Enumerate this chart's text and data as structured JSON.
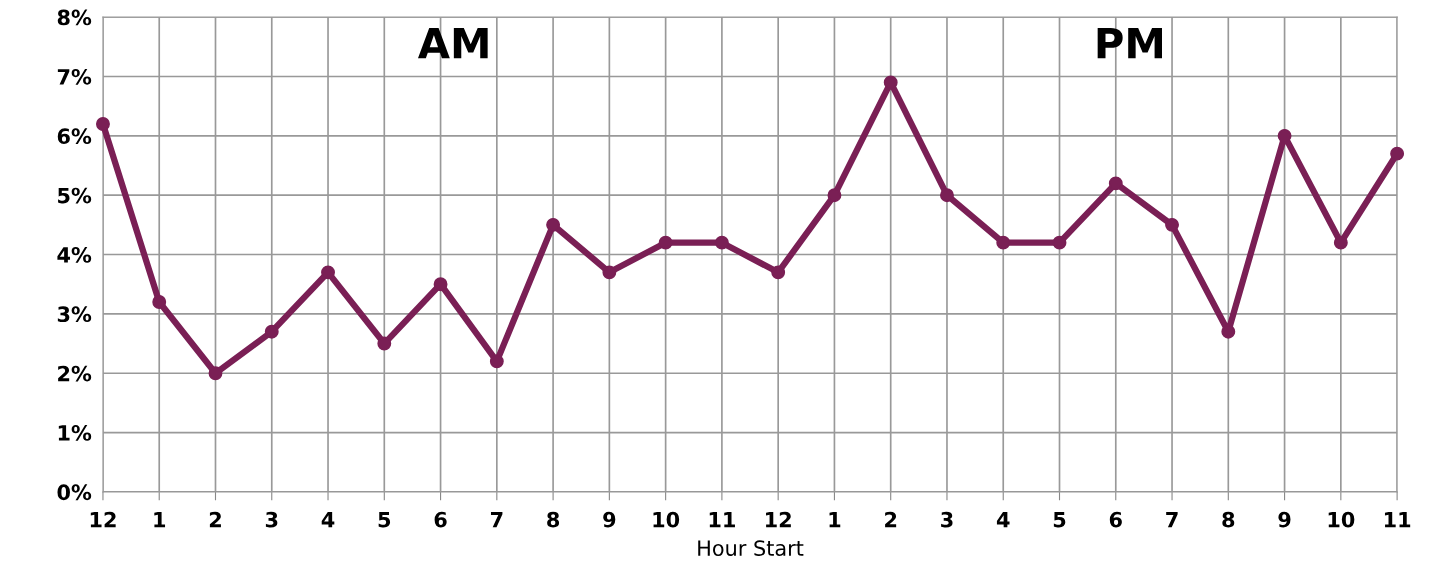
{
  "chart_data": {
    "type": "line",
    "xlabel": "Hour Start",
    "annotations": [
      "AM",
      "PM"
    ],
    "categories": [
      "12",
      "1",
      "2",
      "3",
      "4",
      "5",
      "6",
      "7",
      "8",
      "9",
      "10",
      "11",
      "12",
      "1",
      "2",
      "3",
      "4",
      "5",
      "6",
      "7",
      "8",
      "9",
      "10",
      "11"
    ],
    "series": [
      {
        "color": "#7a1f55",
        "values": [
          6.2,
          3.2,
          2.0,
          2.7,
          3.7,
          2.5,
          3.5,
          2.2,
          4.5,
          3.7,
          4.2,
          4.2,
          3.7,
          5.0,
          6.9,
          5.0,
          4.2,
          4.2,
          5.2,
          4.5,
          2.7,
          6.0,
          4.2,
          5.7
        ]
      }
    ],
    "ylim": [
      0,
      8
    ],
    "yticks": [
      {
        "value": 0,
        "label": "0%"
      },
      {
        "value": 1,
        "label": "1%"
      },
      {
        "value": 2,
        "label": "2%"
      },
      {
        "value": 3,
        "label": "3%"
      },
      {
        "value": 4,
        "label": "4%"
      },
      {
        "value": 5,
        "label": "5%"
      },
      {
        "value": 6,
        "label": "6%"
      },
      {
        "value": 7,
        "label": "7%"
      },
      {
        "value": 8,
        "label": "8%"
      }
    ],
    "grid": true,
    "marker": "circle",
    "line_style": "solid"
  }
}
